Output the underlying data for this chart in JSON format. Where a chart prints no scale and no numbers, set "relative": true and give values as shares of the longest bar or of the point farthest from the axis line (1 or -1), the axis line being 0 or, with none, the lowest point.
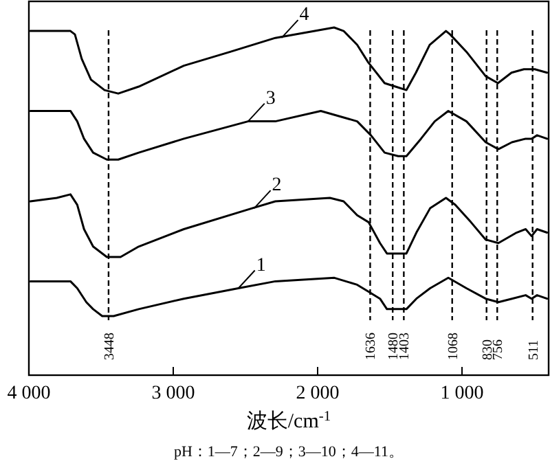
{
  "chart_data": {
    "type": "line",
    "relative": true,
    "xlabel": "波长/cm$^{-1}$",
    "xlim": [
      4000,
      400
    ],
    "xticks": [
      {
        "value": 4000,
        "label": "4 000"
      },
      {
        "value": 3000,
        "label": "3 000"
      },
      {
        "value": 2000,
        "label": "2 000"
      },
      {
        "value": 1000,
        "label": "1 000"
      }
    ],
    "tick_labels": "x",
    "series": [
      {
        "color": "#000000",
        "x": [
          3990,
          3712,
          3665,
          3602,
          3555,
          3492,
          3413,
          3239,
          2927,
          2549,
          2293,
          1884,
          1726,
          1647,
          1568,
          1520,
          1458,
          1385,
          1316,
          1221,
          1095,
          969,
          836,
          748,
          654,
          559,
          518,
          480,
          411
        ],
        "values": [
          0.27,
          0.27,
          0.25,
          0.21,
          0.19,
          0.17,
          0.17,
          0.19,
          0.22,
          0.25,
          0.27,
          0.28,
          0.26,
          0.24,
          0.22,
          0.19,
          0.19,
          0.19,
          0.22,
          0.25,
          0.28,
          0.25,
          0.22,
          0.21,
          0.22,
          0.23,
          0.22,
          0.23,
          0.22
        ]
      },
      {
        "color": "#000000",
        "x": [
          3990,
          3807,
          3712,
          3665,
          3618,
          3555,
          3460,
          3365,
          3239,
          2927,
          2454,
          2293,
          1915,
          1820,
          1726,
          1647,
          1568,
          1520,
          1385,
          1316,
          1221,
          1111,
          1047,
          938,
          836,
          748,
          622,
          559,
          518,
          480,
          411
        ],
        "values": [
          0.5,
          0.51,
          0.52,
          0.49,
          0.42,
          0.37,
          0.34,
          0.34,
          0.37,
          0.42,
          0.48,
          0.5,
          0.51,
          0.5,
          0.46,
          0.44,
          0.38,
          0.35,
          0.35,
          0.41,
          0.48,
          0.51,
          0.49,
          0.44,
          0.39,
          0.38,
          0.41,
          0.42,
          0.4,
          0.42,
          0.41
        ]
      },
      {
        "color": "#000000",
        "x": [
          3990,
          3712,
          3665,
          3618,
          3555,
          3460,
          3381,
          3239,
          2927,
          2482,
          2293,
          1978,
          1726,
          1631,
          1536,
          1442,
          1385,
          1284,
          1189,
          1095,
          969,
          836,
          748,
          654,
          559,
          518,
          480,
          411
        ],
        "values": [
          0.76,
          0.76,
          0.73,
          0.68,
          0.64,
          0.62,
          0.62,
          0.64,
          0.68,
          0.73,
          0.73,
          0.76,
          0.73,
          0.69,
          0.64,
          0.63,
          0.63,
          0.68,
          0.73,
          0.76,
          0.73,
          0.67,
          0.65,
          0.67,
          0.68,
          0.68,
          0.69,
          0.68
        ]
      },
      {
        "color": "#000000",
        "x": [
          3990,
          3712,
          3681,
          3634,
          3570,
          3476,
          3381,
          3239,
          2927,
          2605,
          2293,
          1886,
          1820,
          1726,
          1650,
          1536,
          1461,
          1385,
          1319,
          1224,
          1111,
          1082,
          969,
          836,
          751,
          657,
          571,
          524,
          496,
          411
        ],
        "values": [
          0.99,
          0.99,
          0.98,
          0.91,
          0.85,
          0.82,
          0.81,
          0.83,
          0.89,
          0.93,
          0.97,
          1.0,
          0.99,
          0.95,
          0.9,
          0.84,
          0.83,
          0.82,
          0.87,
          0.95,
          0.99,
          0.98,
          0.93,
          0.86,
          0.84,
          0.87,
          0.88,
          0.88,
          0.88,
          0.87
        ]
      }
    ],
    "ref_lines": [
      {
        "axis": "x",
        "value": 3448,
        "label": "3448",
        "line_style": "dashed"
      },
      {
        "axis": "x",
        "value": 1636,
        "label": "1636",
        "line_style": "dashed"
      },
      {
        "axis": "x",
        "value": 1480,
        "label": "1480",
        "line_style": "dashed"
      },
      {
        "axis": "x",
        "value": 1403,
        "label": "1403",
        "line_style": "dashed"
      },
      {
        "axis": "x",
        "value": 1068,
        "label": "1068",
        "line_style": "dashed"
      },
      {
        "axis": "x",
        "value": 830,
        "label": "830",
        "line_style": "dashed"
      },
      {
        "axis": "x",
        "value": 756,
        "label": "756",
        "line_style": "dashed"
      },
      {
        "axis": "x",
        "value": 511,
        "label": "511",
        "line_style": "dashed"
      }
    ],
    "annotations": [
      {
        "text": "1",
        "x": 2549,
        "y": 0.25
      },
      {
        "text": "2",
        "x": 2440,
        "y": 0.48
      },
      {
        "text": "3",
        "x": 2482,
        "y": 0.73
      },
      {
        "text": "4",
        "x": 2250,
        "y": 0.97
      },
      "pH：1—7；2—9；3—10；4—11。"
    ]
  }
}
